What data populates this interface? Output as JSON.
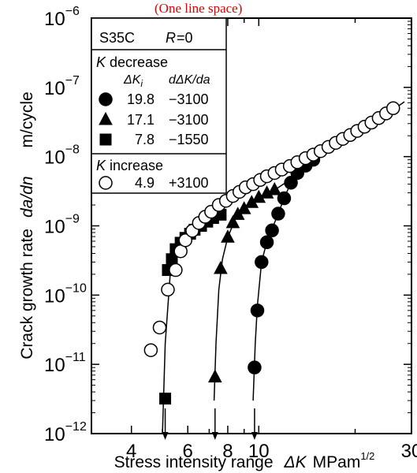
{
  "header_note": "(One line space)",
  "chart_data": {
    "type": "scatter",
    "title": "",
    "xlabel": {
      "prefix": "Stress intensity range",
      "symbol": "ΔK",
      "unit": "MPam",
      "unit_exp": "1/2"
    },
    "ylabel": {
      "prefix": "Crack growth rate",
      "symbol": "da/dn",
      "unit": "m/cycle"
    },
    "x_scale": "log",
    "y_scale": "log",
    "xlim": [
      3,
      30
    ],
    "ylim": [
      1e-12,
      1e-06
    ],
    "x_ticks": [
      {
        "value": 4,
        "label": "4"
      },
      {
        "value": 6,
        "label": "6"
      },
      {
        "value": 8,
        "label": "8"
      },
      {
        "value": 10,
        "label": "10"
      },
      {
        "value": 30,
        "label": "30"
      }
    ],
    "y_ticks": [
      {
        "value": 1e-12,
        "mant": "10",
        "exp": "−12"
      },
      {
        "value": 1e-11,
        "mant": "10",
        "exp": "−11"
      },
      {
        "value": 1e-10,
        "mant": "10",
        "exp": "−10"
      },
      {
        "value": 1e-09,
        "mant": "10",
        "exp": "−9"
      },
      {
        "value": 1e-08,
        "mant": "10",
        "exp": "−8"
      },
      {
        "value": 1e-07,
        "mant": "10",
        "exp": "−7"
      },
      {
        "value": 1e-06,
        "mant": "10",
        "exp": "−6"
      }
    ],
    "threshold_arrows": [
      5.1,
      7.3,
      9.7
    ],
    "legend": {
      "material": "S35C",
      "ratio_symbol": "R",
      "ratio_value": "=0",
      "decrease_heading_symbol": "K",
      "decrease_heading_text": " decrease",
      "col_dki": "ΔK",
      "col_dki_sub": "i",
      "col_rate": "dΔK/da",
      "increase_heading_symbol": "K",
      "increase_heading_text": " increase"
    },
    "series": [
      {
        "name": "19.8",
        "rate_label": "−3100",
        "group": "decrease",
        "marker": "circle",
        "fill": "#000000",
        "points": [
          [
            9.7,
            9e-12
          ],
          [
            9.9,
            6e-11
          ],
          [
            10.2,
            3e-10
          ],
          [
            10.6,
            5.8e-10
          ],
          [
            11.0,
            8.6e-10
          ],
          [
            11.5,
            1.5e-09
          ],
          [
            12.0,
            2.5e-09
          ],
          [
            12.6,
            4.2e-09
          ],
          [
            13.2,
            5.8e-09
          ],
          [
            14.0,
            7.4e-09
          ],
          [
            14.8,
            9e-09
          ]
        ]
      },
      {
        "name": "17.1",
        "rate_label": "−3100",
        "group": "decrease",
        "marker": "triangle",
        "fill": "#000000",
        "points": [
          [
            7.3,
            6.5e-12
          ],
          [
            7.6,
            2.4e-10
          ],
          [
            8.0,
            6.8e-10
          ],
          [
            8.3,
            1.1e-09
          ],
          [
            8.6,
            1.45e-09
          ],
          [
            9.0,
            1.75e-09
          ],
          [
            9.5,
            2.15e-09
          ],
          [
            10.0,
            2.55e-09
          ],
          [
            10.6,
            2.95e-09
          ],
          [
            11.2,
            3.3e-09
          ]
        ]
      },
      {
        "name": "7.8",
        "rate_label": "−1550",
        "group": "decrease",
        "marker": "square",
        "fill": "#000000",
        "points": [
          [
            5.1,
            3.2e-12
          ],
          [
            5.2,
            2.3e-10
          ],
          [
            5.35,
            3.3e-10
          ],
          [
            5.5,
            4.6e-10
          ],
          [
            5.7,
            5.7e-10
          ],
          [
            5.9,
            6.7e-10
          ],
          [
            6.1,
            7.7e-10
          ],
          [
            6.3,
            8.8e-10
          ],
          [
            6.6,
            1e-09
          ],
          [
            6.9,
            1.15e-09
          ],
          [
            7.2,
            1.3e-09
          ],
          [
            7.6,
            1.45e-09
          ]
        ]
      },
      {
        "name": "4.9",
        "rate_label": "+3100",
        "group": "increase",
        "marker": "circle",
        "fill": "#ffffff",
        "points": [
          [
            4.6,
            1.6e-11
          ],
          [
            4.9,
            3.4e-11
          ],
          [
            5.2,
            1.2e-10
          ],
          [
            5.5,
            2.3e-10
          ],
          [
            5.7,
            4.3e-10
          ],
          [
            5.9,
            6.2e-10
          ],
          [
            6.2,
            8.5e-10
          ],
          [
            6.5,
            1.1e-09
          ],
          [
            6.8,
            1.35e-09
          ],
          [
            7.1,
            1.6e-09
          ],
          [
            7.5,
            2e-09
          ],
          [
            7.9,
            2.3e-09
          ],
          [
            8.3,
            2.7e-09
          ],
          [
            8.7,
            3.1e-09
          ],
          [
            9.1,
            3.6e-09
          ],
          [
            9.6,
            4e-09
          ],
          [
            10.1,
            4.6e-09
          ],
          [
            10.6,
            5.2e-09
          ],
          [
            11.2,
            5.8e-09
          ],
          [
            11.8,
            6.5e-09
          ],
          [
            12.5,
            7.3e-09
          ],
          [
            13.2,
            8.3e-09
          ],
          [
            14.0,
            9.5e-09
          ],
          [
            14.8,
            1.07e-08
          ],
          [
            15.6,
            1.2e-08
          ],
          [
            16.5,
            1.38e-08
          ],
          [
            17.4,
            1.58e-08
          ],
          [
            18.3,
            1.8e-08
          ],
          [
            19.3,
            2.05e-08
          ],
          [
            20.3,
            2.35e-08
          ],
          [
            21.4,
            2.7e-08
          ],
          [
            22.5,
            3.1e-08
          ],
          [
            23.7,
            3.6e-08
          ],
          [
            25.0,
            4.2e-08
          ],
          [
            26.3,
            5e-08
          ]
        ]
      }
    ],
    "curves": [
      [
        [
          5.0,
          1e-12
        ],
        [
          5.1,
          2e-11
        ],
        [
          5.3,
          2.3e-10
        ],
        [
          5.7,
          5.7e-10
        ],
        [
          6.2,
          8.4e-10
        ],
        [
          7.0,
          1.3e-09
        ],
        [
          8.0,
          2e-09
        ],
        [
          10.0,
          3.8e-09
        ],
        [
          12.0,
          6e-09
        ],
        [
          14.0,
          8.8e-09
        ],
        [
          16.0,
          1.25e-08
        ],
        [
          18.0,
          1.7e-08
        ],
        [
          20.0,
          2.2e-08
        ],
        [
          22.0,
          2.85e-08
        ],
        [
          24.0,
          3.6e-08
        ],
        [
          26.0,
          4.6e-08
        ],
        [
          28.5,
          6.2e-08
        ]
      ],
      [
        [
          7.25,
          3e-12
        ],
        [
          7.35,
          2e-11
        ],
        [
          7.5,
          1.2e-10
        ],
        [
          7.7,
          3.3e-10
        ],
        [
          8.0,
          6.8e-10
        ],
        [
          8.5,
          1.35e-09
        ],
        [
          9.0,
          1.75e-09
        ],
        [
          10.0,
          2.55e-09
        ],
        [
          11.2,
          3.3e-09
        ],
        [
          12.5,
          4.6e-09
        ],
        [
          14.0,
          7e-09
        ],
        [
          15.5,
          9.5e-09
        ]
      ],
      [
        [
          9.6,
          3e-12
        ],
        [
          9.75,
          2e-11
        ],
        [
          9.9,
          7e-11
        ],
        [
          10.2,
          3e-10
        ],
        [
          10.6,
          5.9e-10
        ],
        [
          11.0,
          9e-10
        ],
        [
          11.5,
          1.5e-09
        ],
        [
          12.0,
          2.5e-09
        ],
        [
          12.6,
          4.2e-09
        ],
        [
          13.2,
          5.8e-09
        ],
        [
          14.0,
          7.4e-09
        ],
        [
          15.0,
          9.4e-09
        ],
        [
          16.0,
          1.15e-08
        ]
      ]
    ]
  }
}
